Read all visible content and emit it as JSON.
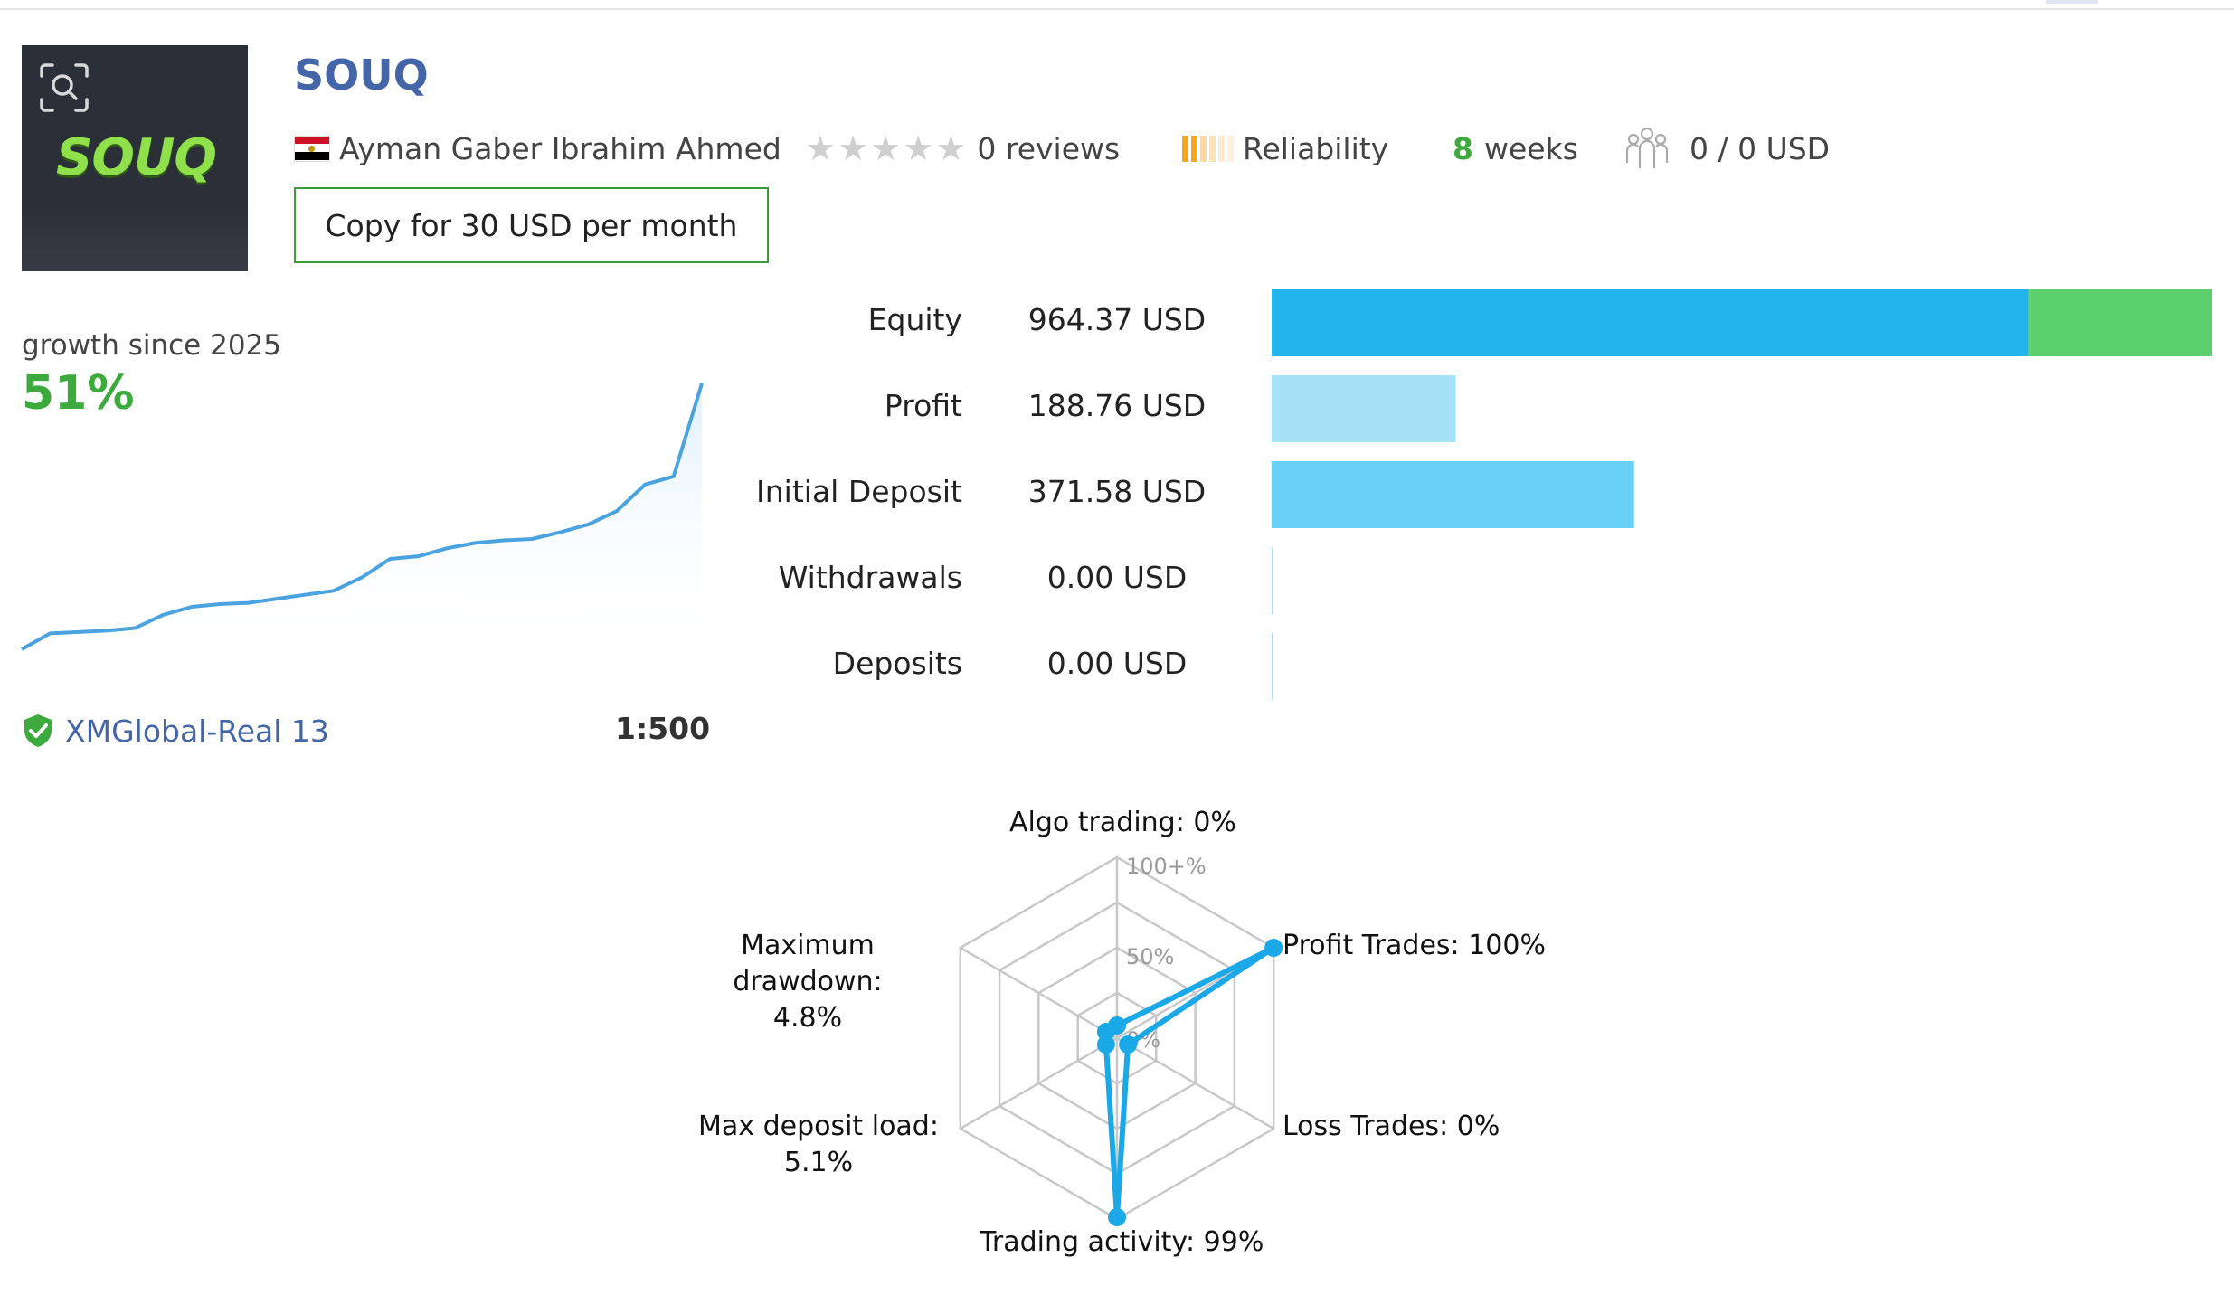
{
  "signal": {
    "name": "SOUQ",
    "author": "Ayman Gaber Ibrahim Ahmed",
    "reviews": "0 reviews",
    "reliability_label": "Reliability",
    "weeks_number": "8",
    "weeks_label": "weeks",
    "subscribers": "0 / 0 USD",
    "copy_button": "Copy for 30 USD per month",
    "logo_text": "SOUQ"
  },
  "growth": {
    "label": "growth since 2025",
    "value": "51%",
    "curve": [
      0,
      6,
      6.5,
      7,
      8,
      13,
      16,
      17,
      17.5,
      19,
      20.5,
      22,
      27,
      34,
      35,
      38,
      40,
      41,
      41.5,
      44,
      47,
      52,
      62,
      65,
      100
    ],
    "server": "XMGlobal-Real 13",
    "leverage": "1:500"
  },
  "stats": [
    {
      "label": "Equity",
      "value": "964.37 USD",
      "amount": 964.37
    },
    {
      "label": "Profit",
      "value": "188.76 USD",
      "amount": 188.76
    },
    {
      "label": "Initial Deposit",
      "value": "371.58 USD",
      "amount": 371.58
    },
    {
      "label": "Withdrawals",
      "value": "0.00 USD",
      "amount": 0
    },
    {
      "label": "Deposits",
      "value": "0.00 USD",
      "amount": 0
    }
  ],
  "radar": {
    "ring_labels": [
      "100+%",
      "50%",
      "0%"
    ],
    "axes": [
      {
        "label": "Algo trading: 0%",
        "value": 0
      },
      {
        "label": "Profit Trades: 100%",
        "value": 100
      },
      {
        "label": "Loss Trades: 0%",
        "value": 0
      },
      {
        "label": "Trading activity: 99%",
        "value": 99
      },
      {
        "label": "Max deposit load: 5.1%",
        "label_line1": "Max deposit load:",
        "label_line2": "5.1%",
        "value": 5.1
      },
      {
        "label": "Maximum drawdown: 4.8%",
        "label_line1": "Maximum drawdown:",
        "label_line2": "4.8%",
        "value": 4.8
      }
    ]
  },
  "colors": {
    "title": "#4466a8",
    "green": "#3caa3c",
    "equity_bar": "#22b5ec",
    "equity_extra": "#5ccf6e",
    "profit_bar": "#a6e2f7",
    "deposit_bar": "#67d0f4",
    "radar_line": "#1aa8e6",
    "reliability": [
      "#f5a623",
      "#f5a623",
      "#fbd9a0",
      "#fbe3b8",
      "#fdebcf",
      "#fdf0dc"
    ]
  }
}
